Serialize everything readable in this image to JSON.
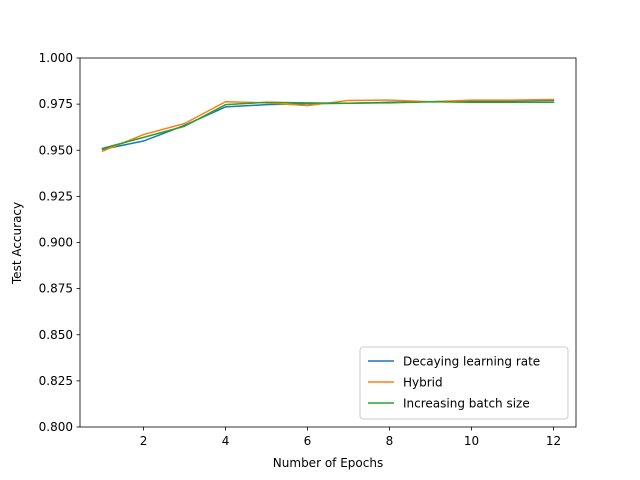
{
  "chart_data": {
    "type": "line",
    "title": "",
    "xlabel": "Number of Epochs",
    "ylabel": "Test Accuracy",
    "xlim": [
      0.45,
      12.55
    ],
    "ylim": [
      0.8,
      1.0
    ],
    "x_ticks": [
      2,
      4,
      6,
      8,
      10,
      12
    ],
    "y_ticks": [
      0.8,
      0.825,
      0.85,
      0.875,
      0.9,
      0.925,
      0.95,
      0.975,
      1.0
    ],
    "x_tick_labels": [
      "2",
      "4",
      "6",
      "8",
      "10",
      "12"
    ],
    "y_tick_labels": [
      "0.800",
      "0.825",
      "0.850",
      "0.875",
      "0.900",
      "0.925",
      "0.950",
      "0.975",
      "1.000"
    ],
    "grid": false,
    "legend_position": "bottom-right",
    "x": [
      1,
      2,
      3,
      4,
      5,
      6,
      7,
      8,
      9,
      10,
      11,
      12
    ],
    "series": [
      {
        "name": "Decaying learning rate",
        "color": "#1f77b4",
        "values": [
          0.9505,
          0.955,
          0.9635,
          0.9735,
          0.9747,
          0.9752,
          0.9755,
          0.976,
          0.9763,
          0.9768,
          0.9768,
          0.977
        ]
      },
      {
        "name": "Hybrid",
        "color": "#ff7f0e",
        "values": [
          0.9495,
          0.9585,
          0.9645,
          0.9763,
          0.9757,
          0.9742,
          0.977,
          0.9772,
          0.9763,
          0.9772,
          0.9772,
          0.9775
        ]
      },
      {
        "name": "Increasing batch size",
        "color": "#2ca02c",
        "values": [
          0.951,
          0.957,
          0.963,
          0.9747,
          0.976,
          0.9757,
          0.9755,
          0.9757,
          0.9763,
          0.976,
          0.976,
          0.976
        ]
      }
    ]
  }
}
